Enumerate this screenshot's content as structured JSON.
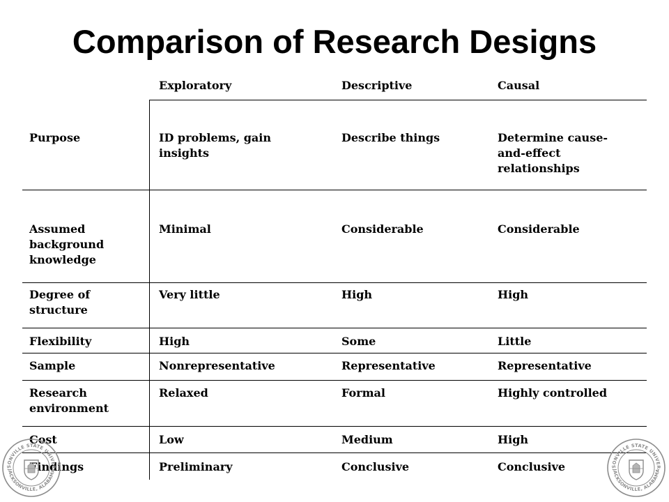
{
  "title": "Comparison of Research Designs",
  "table": {
    "headers": [
      "",
      "Exploratory",
      "Descriptive",
      "Causal"
    ],
    "rows": [
      {
        "label": [
          "Purpose"
        ],
        "exploratory": [
          "ID problems, gain",
          "insights"
        ],
        "descriptive": [
          "Describe things"
        ],
        "causal": [
          "Determine cause-",
          "and-effect",
          "relationships"
        ]
      },
      {
        "label": [
          "Assumed",
          "background",
          "knowledge"
        ],
        "exploratory": [
          "Minimal"
        ],
        "descriptive": [
          "Considerable"
        ],
        "causal": [
          "Considerable"
        ]
      },
      {
        "label": [
          "Degree of",
          "structure"
        ],
        "exploratory": [
          "Very little"
        ],
        "descriptive": [
          "High"
        ],
        "causal": [
          "High"
        ]
      },
      {
        "label": [
          "Flexibility"
        ],
        "exploratory": [
          "High"
        ],
        "descriptive": [
          "Some"
        ],
        "causal": [
          "Little"
        ]
      },
      {
        "label": [
          "Sample"
        ],
        "exploratory": [
          "Nonrepresentative"
        ],
        "descriptive": [
          "Representative"
        ],
        "causal": [
          "Representative"
        ]
      },
      {
        "label": [
          "Research",
          "environment"
        ],
        "exploratory": [
          "Relaxed"
        ],
        "descriptive": [
          "Formal"
        ],
        "causal": [
          "Highly controlled"
        ]
      },
      {
        "label": [
          "Cost"
        ],
        "exploratory": [
          "Low"
        ],
        "descriptive": [
          "Medium"
        ],
        "causal": [
          "High"
        ]
      },
      {
        "label": [
          "Findings"
        ],
        "exploratory": [
          "Preliminary"
        ],
        "descriptive": [
          "Conclusive"
        ],
        "causal": [
          "Conclusive"
        ]
      }
    ]
  },
  "seals": {
    "left_text": [
      "JACKSONVILLE STATE UNIVERSITY",
      "JACKSONVILLE, ALABAMA"
    ],
    "right_text": [
      "JACKSONVILLE STATE UNIVERSITY",
      "JACKSONVILLE, ALABAMA"
    ],
    "color": "#8c8c8c"
  }
}
